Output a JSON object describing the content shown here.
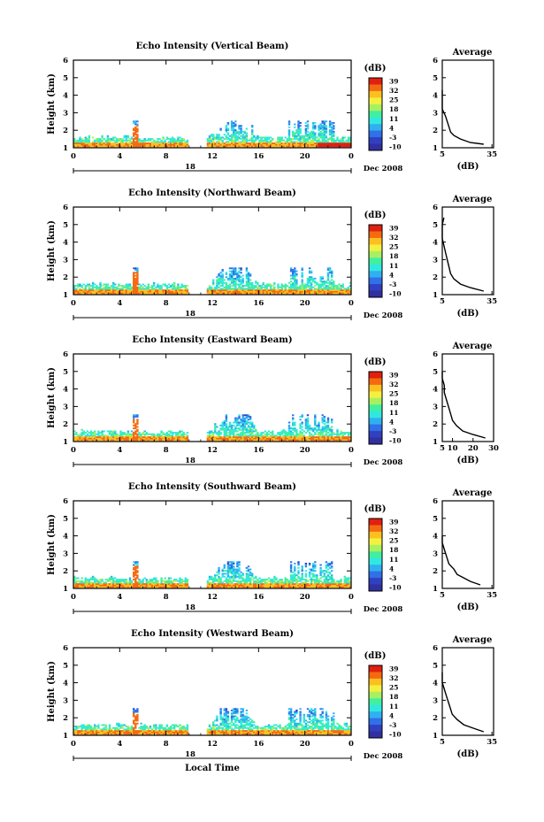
{
  "figure": {
    "date_label": "Dec 2008",
    "day_label": "18",
    "xlabel": "Local Time"
  },
  "colorbar": {
    "unit": "(dB)",
    "ticks": [
      "39",
      "32",
      "25",
      "18",
      "11",
      "4",
      "-3",
      "-10"
    ],
    "colors": [
      "#e02010",
      "#f56a10",
      "#fbc020",
      "#f4f040",
      "#a8f060",
      "#40f0a0",
      "#30e8e0",
      "#30b0f0",
      "#3070e8",
      "#3040c0",
      "#3030a0"
    ]
  },
  "chart_data": [
    {
      "type": "heatmap",
      "title": "Echo Intensity (Vertical Beam)",
      "ylabel": "Height (km)",
      "xlim": [
        0,
        24
      ],
      "ylim": [
        1,
        6
      ],
      "xticks": [
        "0",
        "4",
        "8",
        "12",
        "16",
        "20",
        "0"
      ],
      "yticks": [
        "1",
        "2",
        "3",
        "4",
        "5",
        "6"
      ],
      "z_range": [
        -10,
        39
      ],
      "profile": {
        "title": "Average",
        "xlabel": "(dB)",
        "xlim": [
          5,
          36
        ],
        "xticks": [
          "5",
          "35"
        ],
        "height": [
          1.2,
          1.3,
          1.5,
          1.7,
          1.9,
          2.2,
          2.5,
          2.8,
          3.0,
          3.2,
          3.4,
          3.6,
          3.8,
          4.0,
          4.3
        ],
        "db": [
          30,
          22,
          16,
          12,
          10,
          9,
          8,
          7,
          6,
          5,
          4,
          3,
          3,
          2,
          2
        ]
      }
    },
    {
      "type": "heatmap",
      "title": "Echo Intensity (Northward Beam)",
      "ylabel": "Height (km)",
      "xlim": [
        0,
        24
      ],
      "ylim": [
        1,
        6
      ],
      "xticks": [
        "0",
        "4",
        "8",
        "12",
        "16",
        "20",
        "0"
      ],
      "yticks": [
        "1",
        "2",
        "3",
        "4",
        "5",
        "6"
      ],
      "z_range": [
        -10,
        39
      ],
      "profile": {
        "title": "Average",
        "xlabel": "(dB)",
        "xlim": [
          5,
          36
        ],
        "xticks": [
          "5",
          "35"
        ],
        "height": [
          1.2,
          1.4,
          1.6,
          1.9,
          2.2,
          2.6,
          3.0,
          3.4,
          3.8,
          4.2,
          4.6,
          5.0,
          5.4
        ],
        "db": [
          30,
          22,
          16,
          12,
          10,
          9,
          8,
          7,
          6,
          5,
          4,
          5,
          6
        ]
      }
    },
    {
      "type": "heatmap",
      "title": "Echo Intensity (Eastward Beam)",
      "ylabel": "Height (km)",
      "xlim": [
        0,
        24
      ],
      "ylim": [
        1,
        6
      ],
      "xticks": [
        "0",
        "4",
        "8",
        "12",
        "16",
        "20",
        "0"
      ],
      "yticks": [
        "1",
        "2",
        "3",
        "4",
        "5",
        "6"
      ],
      "z_range": [
        -10,
        39
      ],
      "profile": {
        "title": "Average",
        "xlabel": "(dB)",
        "xlim": [
          5,
          30
        ],
        "xticks": [
          "5",
          "10",
          "20",
          "30"
        ],
        "height": [
          1.2,
          1.4,
          1.6,
          1.9,
          2.2,
          2.6,
          3.0,
          3.4,
          3.8,
          4.2,
          4.6,
          5.0
        ],
        "db": [
          26,
          20,
          15,
          12,
          10,
          9,
          8,
          7,
          6,
          6,
          5,
          5
        ]
      }
    },
    {
      "type": "heatmap",
      "title": "Echo Intensity (Southward Beam)",
      "ylabel": "Height (km)",
      "xlim": [
        0,
        24
      ],
      "ylim": [
        1,
        6
      ],
      "xticks": [
        "0",
        "4",
        "8",
        "12",
        "16",
        "20",
        "0"
      ],
      "yticks": [
        "1",
        "2",
        "3",
        "4",
        "5",
        "6"
      ],
      "z_range": [
        -10,
        39
      ],
      "profile": {
        "title": "Average",
        "xlabel": "(dB)",
        "xlim": [
          5,
          36
        ],
        "xticks": [
          "5",
          "35"
        ],
        "height": [
          1.2,
          1.4,
          1.6,
          1.8,
          2.1,
          2.4,
          2.7,
          3.0,
          3.3,
          3.6,
          4.0
        ],
        "db": [
          28,
          22,
          18,
          14,
          12,
          9,
          8,
          7,
          6,
          5,
          4
        ]
      }
    },
    {
      "type": "heatmap",
      "title": "Echo Intensity (Westward Beam)",
      "ylabel": "Height (km)",
      "xlim": [
        0,
        24
      ],
      "ylim": [
        1,
        6
      ],
      "xticks": [
        "0",
        "4",
        "8",
        "12",
        "16",
        "20",
        "0"
      ],
      "yticks": [
        "1",
        "2",
        "3",
        "4",
        "5",
        "6"
      ],
      "z_range": [
        -10,
        39
      ],
      "profile": {
        "title": "Average",
        "xlabel": "(dB)",
        "xlim": [
          5,
          36
        ],
        "xticks": [
          "5",
          "35"
        ],
        "height": [
          1.2,
          1.4,
          1.6,
          1.9,
          2.2,
          2.5,
          2.8,
          3.1,
          3.4,
          3.7,
          4.0,
          4.3,
          4.6
        ],
        "db": [
          30,
          24,
          18,
          14,
          11,
          10,
          9,
          8,
          7,
          6,
          5,
          4,
          4
        ]
      }
    }
  ]
}
